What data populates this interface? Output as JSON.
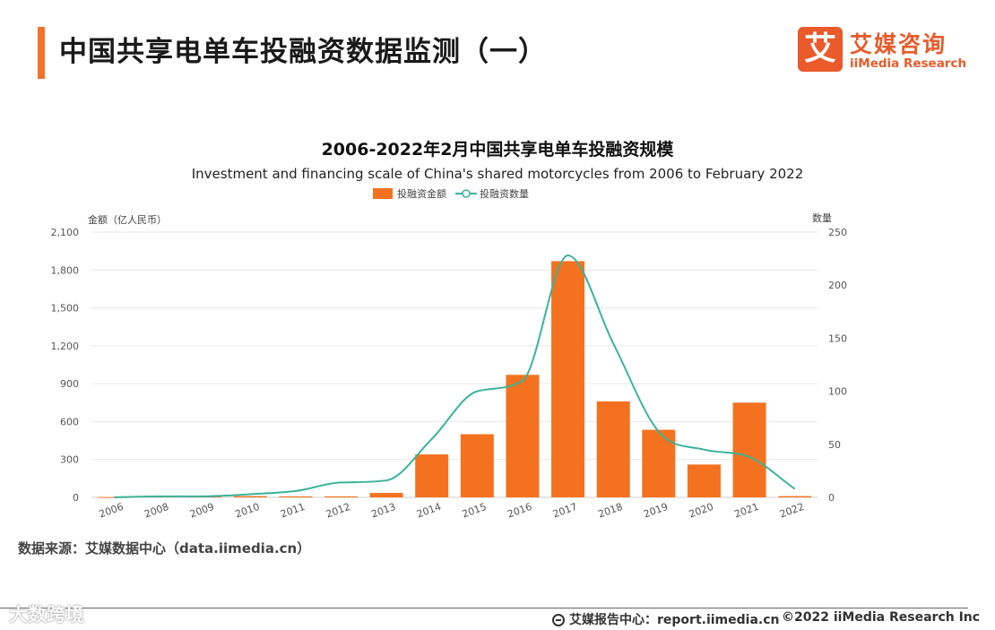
{
  "header": {
    "title": "中国共享电单车投融资数据监测（一）",
    "logo_mark": "艾",
    "logo_cn": "艾媒咨询",
    "logo_en": "iiMedia Research"
  },
  "colors": {
    "accent": "#f4722b",
    "bar": "#f4721f",
    "line": "#3bb39a",
    "grid": "#e6e6e6"
  },
  "chart_data": {
    "type": "bar+line",
    "title": "2006-2022年2月中国共享电单车投融资规模",
    "subtitle": "Investment and financing scale of China's shared motorcycles from 2006 to February 2022",
    "legend": [
      "投融资金额",
      "投融资数量"
    ],
    "legend_position": "top-center",
    "ylabel_left": "金额（亿人民币）",
    "ylabel_right": "数量",
    "categories": [
      "2006",
      "2008",
      "2009",
      "2010",
      "2011",
      "2012",
      "2013",
      "2014",
      "2015",
      "2016",
      "2017",
      "2018",
      "2019",
      "2020",
      "2021",
      "2022"
    ],
    "series": [
      {
        "name": "投融资金额",
        "axis": "left",
        "type": "bar",
        "values": [
          3,
          10,
          8,
          10,
          8,
          8,
          35,
          340,
          500,
          970,
          1870,
          760,
          535,
          260,
          750,
          10
        ]
      },
      {
        "name": "投融资数量",
        "axis": "right",
        "type": "line",
        "values": [
          0,
          1,
          1,
          3,
          6,
          14,
          16,
          55,
          100,
          110,
          228,
          145,
          62,
          45,
          38,
          8
        ]
      }
    ],
    "ylim_left": [
      0,
      2100
    ],
    "ylim_right": [
      0,
      250
    ],
    "yticks_left": [
      "0",
      "300",
      "600",
      "900",
      "1,200",
      "1,500",
      "1,800",
      "2,100"
    ],
    "yticks_right": [
      "0",
      "50",
      "100",
      "150",
      "200",
      "250"
    ],
    "grid": true
  },
  "footer": {
    "source": "数据来源：艾媒数据中心（data.iimedia.cn）",
    "watermark": "大数跨境",
    "report": "艾媒报告中心：report.iimedia.cn",
    "copyright": "©2022  iiMedia Research  Inc"
  }
}
